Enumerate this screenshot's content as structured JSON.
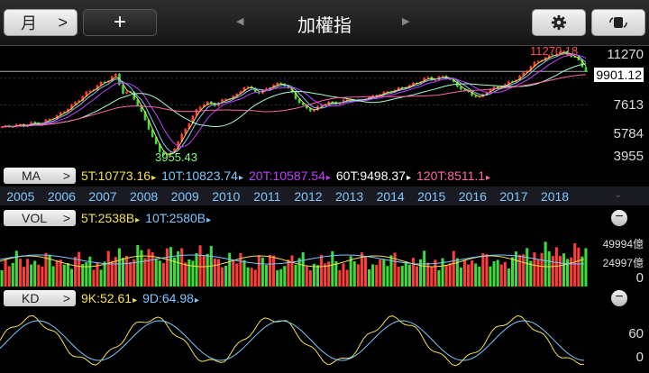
{
  "toolbar": {
    "period_label": "月",
    "period_chevron": ">",
    "add_label": "+",
    "title": "加權指",
    "prev_arrow": "◀",
    "next_arrow": "▶"
  },
  "price_axis": {
    "high": "11270",
    "current": "9901.12",
    "mid1": "7613",
    "mid2": "5784",
    "low": "3955"
  },
  "annotations": {
    "high_label": "11270.18",
    "low_label": "3955.43"
  },
  "ma": {
    "tag": "MA",
    "chevron": ">",
    "items": [
      {
        "text": "5T:10773.16",
        "color": "#f5e050"
      },
      {
        "text": "10T:10823.74",
        "color": "#7ec8ff"
      },
      {
        "text": "20T:10587.54",
        "color": "#c040ff"
      },
      {
        "text": "60T:9498.37",
        "color": "#ffffff"
      },
      {
        "text": "120T:8511.1",
        "color": "#ff66aa"
      }
    ]
  },
  "years": [
    "2005",
    "2006",
    "2007",
    "2008",
    "2009",
    "2010",
    "2011",
    "2012",
    "2013",
    "2014",
    "2015",
    "2016",
    "2017",
    "2018"
  ],
  "vol": {
    "tag": "VOL",
    "chevron": ">",
    "items": [
      {
        "text": "5T:2538B",
        "color": "#f5e050"
      },
      {
        "text": "10T:2580B",
        "color": "#7ec8ff"
      }
    ],
    "axis_top": "49994億",
    "axis_mid": "24997億",
    "axis_zero": "0",
    "minus": "−"
  },
  "kd": {
    "tag": "KD",
    "chevron": ">",
    "items": [
      {
        "text": "9K:52.61",
        "color": "#f5e050"
      },
      {
        "text": "9D:64.98",
        "color": "#7ec8ff"
      }
    ],
    "axis_60": "60",
    "axis_0": "0",
    "minus": "−"
  },
  "chart_data": {
    "type": "candlestick",
    "ylim": [
      3955.43,
      11270.18
    ],
    "close": [
      6100,
      6150,
      6250,
      6200,
      6400,
      6300,
      6600,
      6800,
      7100,
      7500,
      7900,
      8400,
      8700,
      9100,
      9300,
      9700,
      8400,
      8500,
      7500,
      6500,
      5200,
      4300,
      4100,
      4900,
      5800,
      6700,
      7500,
      7800,
      7600,
      7900,
      8100,
      8300,
      8900,
      8700,
      8400,
      8800,
      9000,
      9100,
      8600,
      7900,
      7400,
      7200,
      7600,
      7800,
      7700,
      7900,
      8000,
      7900,
      8100,
      8200,
      8400,
      8500,
      8700,
      8800,
      9000,
      9200,
      9500,
      9300,
      9600,
      9400,
      8900,
      8600,
      8300,
      8100,
      8600,
      8800,
      8900,
      9200,
      9400,
      9900,
      10400,
      10700,
      10900,
      11100,
      11270,
      10950,
      10700,
      9901
    ]
  }
}
